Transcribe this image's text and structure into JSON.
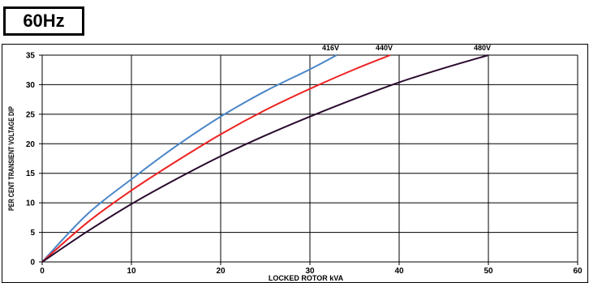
{
  "header": {
    "title": "60Hz"
  },
  "chart_data": {
    "type": "line",
    "xlabel": "LOCKED ROTOR kVA",
    "ylabel": "PER CENT TRANSIENT VOLTAGE DIP",
    "xlim": [
      0,
      60
    ],
    "ylim": [
      0,
      35
    ],
    "xticks": [
      0,
      10,
      20,
      30,
      40,
      50,
      60
    ],
    "yticks": [
      0,
      5,
      10,
      15,
      20,
      25,
      30,
      35
    ],
    "grid": true,
    "series": [
      {
        "name": "416V",
        "color": "#4a86c8",
        "x": [
          0,
          5,
          10,
          15,
          20,
          25,
          30,
          33
        ],
        "y": [
          0,
          8.0,
          14.0,
          19.6,
          24.6,
          28.9,
          32.6,
          35
        ]
      },
      {
        "name": "440V",
        "color": "#ee2222",
        "x": [
          0,
          5,
          10,
          15,
          20,
          25,
          30,
          35,
          39
        ],
        "y": [
          0,
          6.6,
          12.1,
          17.0,
          21.6,
          25.7,
          29.3,
          32.6,
          35
        ]
      },
      {
        "name": "480V",
        "color": "#2a0a2e",
        "x": [
          0,
          5,
          10,
          15,
          20,
          25,
          30,
          35,
          40,
          45,
          50
        ],
        "y": [
          0,
          5.1,
          9.8,
          14.0,
          17.9,
          21.4,
          24.6,
          27.6,
          30.4,
          32.8,
          35
        ]
      }
    ]
  }
}
